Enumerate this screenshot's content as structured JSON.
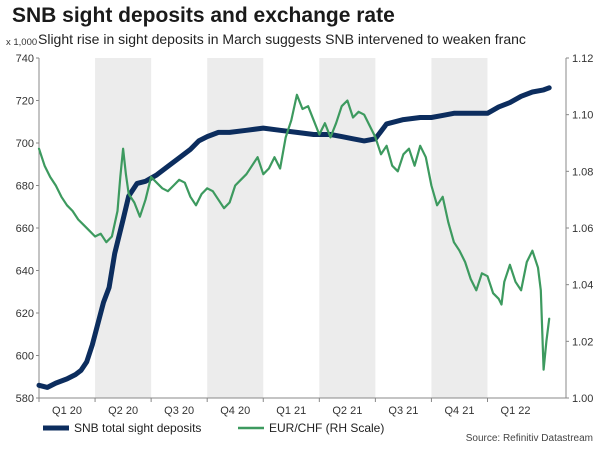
{
  "chart_data": {
    "type": "line",
    "title": "SNB sight deposits and exchange rate",
    "subtitle": "Slight rise in sight deposits in March suggests SNB intervened to weaken franc",
    "left_axis_unit": "x 1,000",
    "source": "Source: Refinitiv Datastream",
    "ylim_left": [
      580,
      740
    ],
    "yticks_left": [
      580,
      600,
      620,
      640,
      660,
      680,
      700,
      720,
      740
    ],
    "ylim_right": [
      1.0,
      1.12
    ],
    "yticks_right": [
      "1.00",
      "1.02",
      "1.04",
      "1.06",
      "1.08",
      "1.10",
      "1.12"
    ],
    "x_range": [
      0,
      9.4
    ],
    "quarters": [
      "Q1 20",
      "Q2 20",
      "Q3 20",
      "Q4 20",
      "Q1 21",
      "Q2 21",
      "Q3 21",
      "Q4 21",
      "Q1 22"
    ],
    "shaded_quarters": [
      1,
      3,
      5,
      7
    ],
    "series": [
      {
        "name": "SNB total sight deposits",
        "axis": "left",
        "color": "#0c2d5e",
        "x": [
          0,
          0.15,
          0.3,
          0.5,
          0.65,
          0.75,
          0.85,
          0.95,
          1.05,
          1.15,
          1.25,
          1.35,
          1.5,
          1.6,
          1.75,
          1.9,
          2.1,
          2.3,
          2.5,
          2.7,
          2.85,
          3.0,
          3.2,
          3.4,
          3.7,
          4.0,
          4.3,
          4.6,
          4.9,
          5.1,
          5.2,
          5.4,
          5.6,
          5.8,
          6.0,
          6.2,
          6.5,
          6.8,
          7.0,
          7.2,
          7.4,
          7.6,
          7.8,
          8.0,
          8.2,
          8.4,
          8.6,
          8.8,
          9.0,
          9.1
        ],
        "values": [
          586,
          585,
          587,
          589,
          591,
          593,
          597,
          605,
          615,
          625,
          632,
          648,
          664,
          675,
          681,
          682,
          685,
          689,
          693,
          697,
          701,
          703,
          705,
          705,
          706,
          707,
          706,
          705,
          704,
          704,
          704,
          703,
          702,
          701,
          702,
          709,
          711,
          712,
          712,
          713,
          714,
          714,
          714,
          714,
          717,
          719,
          722,
          724,
          725,
          726
        ]
      },
      {
        "name": "EUR/CHF (RH Scale)",
        "axis": "right",
        "color": "#3d9a5f",
        "x": [
          0,
          0.1,
          0.2,
          0.3,
          0.4,
          0.5,
          0.6,
          0.7,
          0.8,
          0.9,
          1.0,
          1.1,
          1.2,
          1.3,
          1.4,
          1.45,
          1.5,
          1.55,
          1.6,
          1.7,
          1.8,
          1.9,
          2.0,
          2.1,
          2.2,
          2.3,
          2.4,
          2.5,
          2.6,
          2.7,
          2.8,
          2.9,
          3.0,
          3.1,
          3.2,
          3.3,
          3.4,
          3.5,
          3.6,
          3.7,
          3.8,
          3.9,
          4.0,
          4.1,
          4.2,
          4.3,
          4.4,
          4.5,
          4.6,
          4.7,
          4.8,
          4.9,
          5.0,
          5.1,
          5.2,
          5.3,
          5.4,
          5.5,
          5.6,
          5.7,
          5.8,
          5.9,
          6.0,
          6.1,
          6.2,
          6.3,
          6.4,
          6.5,
          6.6,
          6.7,
          6.8,
          6.9,
          7.0,
          7.1,
          7.2,
          7.3,
          7.4,
          7.5,
          7.6,
          7.7,
          7.8,
          7.9,
          8.0,
          8.1,
          8.2,
          8.25,
          8.3,
          8.4,
          8.5,
          8.6,
          8.7,
          8.8,
          8.9,
          8.95,
          9.0,
          9.05,
          9.1
        ],
        "values": [
          1.088,
          1.082,
          1.078,
          1.075,
          1.071,
          1.068,
          1.066,
          1.063,
          1.061,
          1.059,
          1.057,
          1.058,
          1.055,
          1.057,
          1.066,
          1.078,
          1.088,
          1.079,
          1.072,
          1.069,
          1.064,
          1.07,
          1.078,
          1.076,
          1.074,
          1.073,
          1.075,
          1.077,
          1.076,
          1.071,
          1.068,
          1.072,
          1.074,
          1.073,
          1.07,
          1.067,
          1.069,
          1.075,
          1.077,
          1.079,
          1.082,
          1.085,
          1.079,
          1.081,
          1.085,
          1.081,
          1.092,
          1.098,
          1.107,
          1.102,
          1.103,
          1.098,
          1.093,
          1.097,
          1.092,
          1.097,
          1.103,
          1.105,
          1.099,
          1.101,
          1.1,
          1.096,
          1.092,
          1.086,
          1.089,
          1.082,
          1.08,
          1.086,
          1.088,
          1.082,
          1.089,
          1.085,
          1.075,
          1.068,
          1.071,
          1.062,
          1.055,
          1.052,
          1.048,
          1.042,
          1.038,
          1.044,
          1.043,
          1.037,
          1.035,
          1.033,
          1.041,
          1.047,
          1.041,
          1.038,
          1.048,
          1.052,
          1.046,
          1.038,
          1.01,
          1.02,
          1.028
        ]
      }
    ]
  }
}
